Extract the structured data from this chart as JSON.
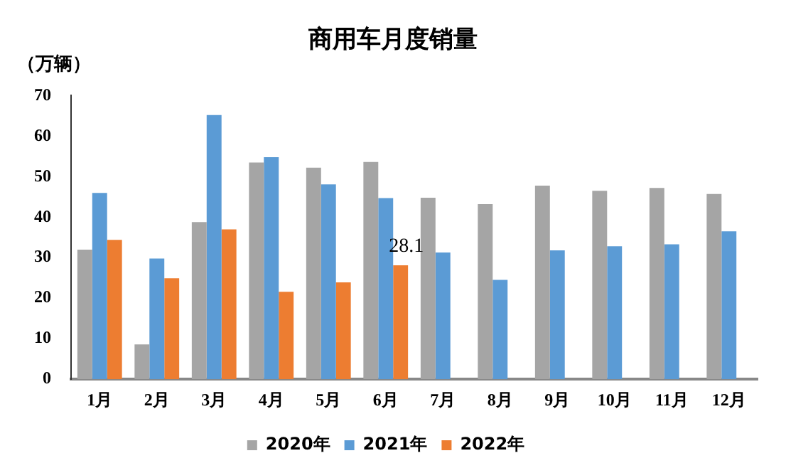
{
  "chart_data": {
    "type": "bar",
    "title": "商用车月度销量",
    "ylabel": "（万辆）",
    "categories": [
      "1月",
      "2月",
      "3月",
      "4月",
      "5月",
      "6月",
      "7月",
      "8月",
      "9月",
      "10月",
      "11月",
      "12月"
    ],
    "series": [
      {
        "name": "2020年",
        "color": "#a5a5a5",
        "values": [
          32.0,
          8.6,
          38.8,
          53.5,
          52.2,
          53.6,
          44.8,
          43.2,
          47.8,
          46.5,
          47.2,
          45.7
        ]
      },
      {
        "name": "2021年",
        "color": "#5b9bd5",
        "values": [
          46.0,
          29.8,
          65.2,
          54.8,
          48.1,
          44.7,
          31.3,
          24.5,
          31.8,
          32.8,
          33.3,
          36.5
        ]
      },
      {
        "name": "2022年",
        "color": "#ed7d31",
        "values": [
          34.4,
          24.9,
          37.0,
          21.6,
          23.9,
          28.1,
          null,
          null,
          null,
          null,
          null,
          null
        ],
        "value_labels": [
          null,
          null,
          null,
          null,
          null,
          "28.1",
          null,
          null,
          null,
          null,
          null,
          null
        ]
      }
    ],
    "ylim": [
      0,
      70
    ],
    "yticks": [
      0,
      10,
      20,
      30,
      40,
      50,
      60,
      70
    ],
    "grid": false,
    "legend": "bottom"
  }
}
